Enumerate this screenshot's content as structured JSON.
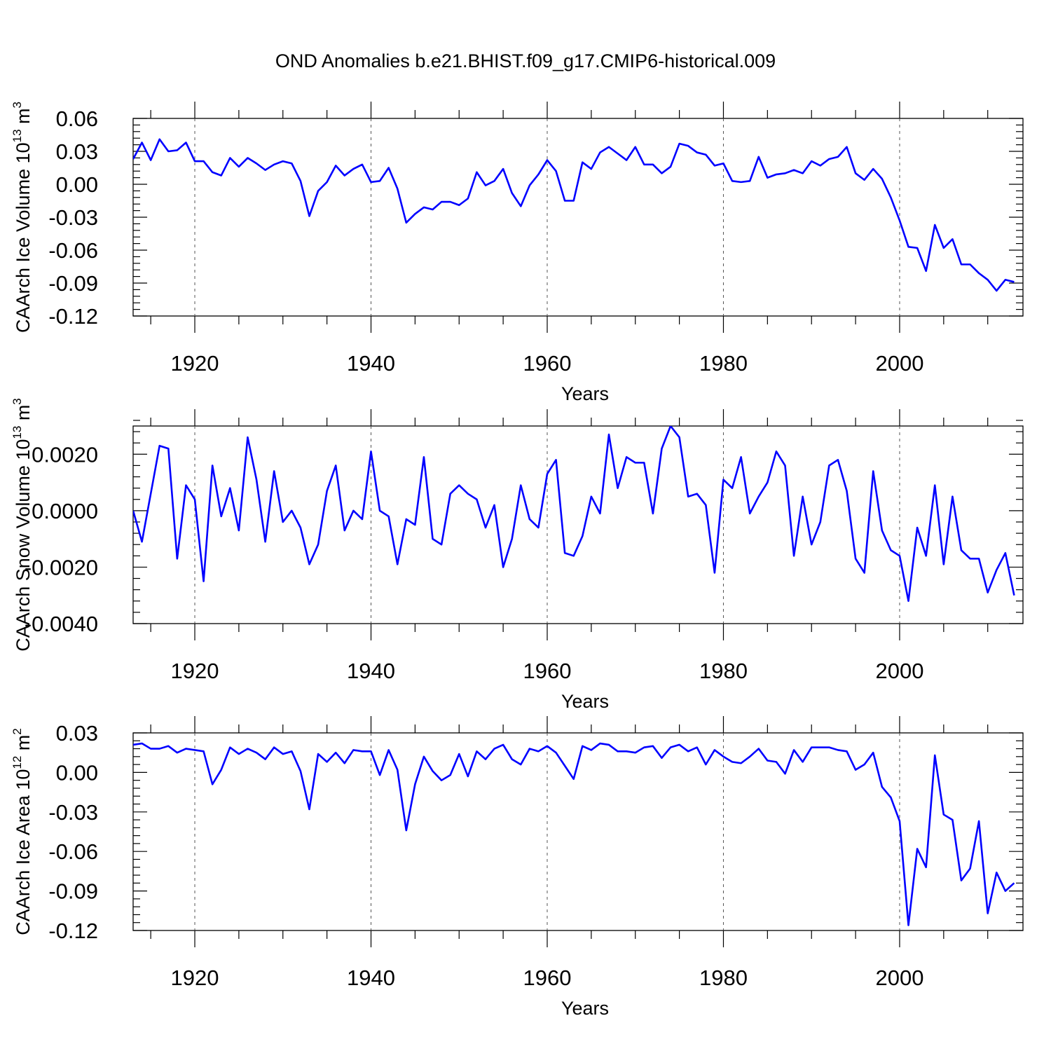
{
  "title": "OND Anomalies b.e21.BHIST.f09_g17.CMIP6-historical.009",
  "chart_data": [
    {
      "type": "line",
      "name": "ice-volume",
      "ylabel": {
        "main": "CAArch Ice Volume 10",
        "exp": "13",
        "unit": " m",
        "unit_exp": "3"
      },
      "xlabel": "Years",
      "xlim": [
        1913,
        2014
      ],
      "ylim": [
        -0.12,
        0.06
      ],
      "yticks": [
        0.06,
        0.03,
        0.0,
        -0.03,
        -0.06,
        -0.09,
        -0.12
      ],
      "ytick_labels": [
        "0.06",
        "0.03",
        "0.00",
        "-0.03",
        "-0.06",
        "-0.09",
        "-0.12"
      ],
      "xticks": [
        1920,
        1940,
        1960,
        1980,
        2000
      ],
      "xtick_labels": [
        "1920",
        "1940",
        "1960",
        "1980",
        "2000"
      ],
      "grid": "vertical dashed at major x ticks",
      "line_color": "#0000ff",
      "x_start": 1913,
      "values": [
        0.023,
        0.038,
        0.022,
        0.041,
        0.03,
        0.031,
        0.038,
        0.021,
        0.021,
        0.011,
        0.008,
        0.024,
        0.016,
        0.024,
        0.019,
        0.013,
        0.018,
        0.021,
        0.019,
        0.003,
        -0.029,
        -0.006,
        0.002,
        0.017,
        0.008,
        0.014,
        0.018,
        0.002,
        0.003,
        0.015,
        -0.004,
        -0.035,
        -0.027,
        -0.021,
        -0.023,
        -0.016,
        -0.016,
        -0.019,
        -0.013,
        0.011,
        -0.001,
        0.003,
        0.014,
        -0.008,
        -0.02,
        -0.001,
        0.009,
        0.022,
        0.012,
        -0.015,
        -0.015,
        0.02,
        0.014,
        0.029,
        0.034,
        0.028,
        0.022,
        0.034,
        0.018,
        0.018,
        0.01,
        0.016,
        0.037,
        0.035,
        0.029,
        0.027,
        0.017,
        0.019,
        0.003,
        0.002,
        0.003,
        0.025,
        0.006,
        0.009,
        0.01,
        0.013,
        0.01,
        0.021,
        0.017,
        0.023,
        0.025,
        0.034,
        0.01,
        0.004,
        0.014,
        0.005,
        -0.012,
        -0.033,
        -0.057,
        -0.058,
        -0.079,
        -0.037,
        -0.058,
        -0.05,
        -0.073,
        -0.073,
        -0.081,
        -0.087,
        -0.097,
        -0.087,
        -0.089
      ]
    },
    {
      "type": "line",
      "name": "snow-volume",
      "ylabel": {
        "main": "CAArch Snow Volume 10",
        "exp": "13",
        "unit": " m",
        "unit_exp": "3"
      },
      "xlabel": "Years",
      "xlim": [
        1913,
        2014
      ],
      "ylim": [
        -0.004,
        0.003
      ],
      "yticks": [
        0.002,
        0.0,
        -0.002,
        -0.004
      ],
      "ytick_labels": [
        "0.0020",
        "0.0000",
        "-0.0020",
        "-0.0040"
      ],
      "xticks": [
        1920,
        1940,
        1960,
        1980,
        2000
      ],
      "xtick_labels": [
        "1920",
        "1940",
        "1960",
        "1980",
        "2000"
      ],
      "grid": "vertical dashed at major x ticks",
      "line_color": "#0000ff",
      "x_start": 1913,
      "values": [
        0.0,
        -0.0011,
        0.0006,
        0.0023,
        0.0022,
        -0.0017,
        0.0009,
        0.0004,
        -0.0025,
        0.0016,
        -0.0002,
        0.0008,
        -0.0007,
        0.0026,
        0.0011,
        -0.0011,
        0.0014,
        -0.0004,
        0.0,
        -0.0006,
        -0.0019,
        -0.0012,
        0.0007,
        0.0016,
        -0.0007,
        0.0,
        -0.0003,
        0.0021,
        0.0,
        -0.0002,
        -0.0019,
        -0.0003,
        -0.0005,
        0.0019,
        -0.001,
        -0.0012,
        0.0006,
        0.0009,
        0.0006,
        0.0004,
        -0.0006,
        0.0002,
        -0.002,
        -0.001,
        0.0009,
        -0.0003,
        -0.0006,
        0.0013,
        0.0018,
        -0.0015,
        -0.0016,
        -0.0009,
        0.0005,
        -0.0001,
        0.0027,
        0.0008,
        0.0019,
        0.0017,
        0.0017,
        -0.0001,
        0.0022,
        0.003,
        0.0026,
        0.0005,
        0.0006,
        0.0002,
        -0.0022,
        0.0011,
        0.0008,
        0.0019,
        -0.0001,
        0.0005,
        0.001,
        0.0021,
        0.0016,
        -0.0016,
        0.0005,
        -0.0012,
        -0.0004,
        0.0016,
        0.0018,
        0.0007,
        -0.0017,
        -0.0022,
        0.0014,
        -0.0007,
        -0.0014,
        -0.0016,
        -0.0032,
        -0.0006,
        -0.0016,
        0.0009,
        -0.0019,
        0.0005,
        -0.0014,
        -0.0017,
        -0.0017,
        -0.0029,
        -0.0021,
        -0.0015,
        -0.003
      ]
    },
    {
      "type": "line",
      "name": "ice-area",
      "ylabel": {
        "main": "CAArch Ice Area 10",
        "exp": "12",
        "unit": " m",
        "unit_exp": "2"
      },
      "xlabel": "Years",
      "xlim": [
        1913,
        2014
      ],
      "ylim": [
        -0.12,
        0.03
      ],
      "yticks": [
        0.03,
        0.0,
        -0.03,
        -0.06,
        -0.09,
        -0.12
      ],
      "ytick_labels": [
        "0.03",
        "0.00",
        "-0.03",
        "-0.06",
        "-0.09",
        "-0.12"
      ],
      "xticks": [
        1920,
        1940,
        1960,
        1980,
        2000
      ],
      "xtick_labels": [
        "1920",
        "1940",
        "1960",
        "1980",
        "2000"
      ],
      "grid": "vertical dashed at major x ticks",
      "line_color": "#0000ff",
      "x_start": 1913,
      "values": [
        0.021,
        0.022,
        0.018,
        0.018,
        0.02,
        0.015,
        0.018,
        0.017,
        0.016,
        -0.009,
        0.002,
        0.019,
        0.014,
        0.018,
        0.015,
        0.01,
        0.019,
        0.014,
        0.016,
        0.001,
        -0.028,
        0.014,
        0.008,
        0.015,
        0.007,
        0.017,
        0.016,
        0.016,
        -0.002,
        0.017,
        0.002,
        -0.044,
        -0.009,
        0.012,
        0.001,
        -0.006,
        -0.002,
        0.014,
        -0.003,
        0.016,
        0.01,
        0.018,
        0.021,
        0.01,
        0.006,
        0.018,
        0.016,
        0.02,
        0.015,
        0.005,
        -0.005,
        0.02,
        0.017,
        0.022,
        0.021,
        0.016,
        0.016,
        0.015,
        0.019,
        0.02,
        0.011,
        0.019,
        0.021,
        0.016,
        0.019,
        0.006,
        0.017,
        0.012,
        0.008,
        0.007,
        0.012,
        0.018,
        0.009,
        0.008,
        -0.001,
        0.017,
        0.008,
        0.019,
        0.019,
        0.019,
        0.017,
        0.016,
        0.002,
        0.006,
        0.015,
        -0.011,
        -0.019,
        -0.037,
        -0.116,
        -0.058,
        -0.072,
        0.013,
        -0.032,
        -0.036,
        -0.082,
        -0.073,
        -0.037,
        -0.107,
        -0.076,
        -0.09,
        -0.084
      ]
    }
  ]
}
